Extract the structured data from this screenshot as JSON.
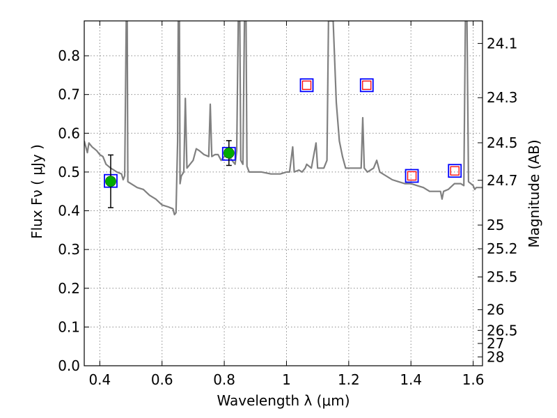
{
  "chart_data": {
    "type": "scatter",
    "xlabel": "Wavelength  λ (μm)",
    "ylabel": "Flux  Fν  ( μJy )",
    "y2label": "Magnitude (AB)",
    "xlim": [
      0.35,
      1.63
    ],
    "ylim": [
      0.0,
      0.89
    ],
    "grid": true,
    "x_ticks": [
      0.4,
      0.6,
      0.8,
      1.0,
      1.2,
      1.4,
      1.6
    ],
    "x_tick_labels": [
      "0.4",
      "0.6",
      "0.8",
      "1",
      "1.2",
      "1.4",
      "1.6"
    ],
    "y_ticks": [
      0.0,
      0.1,
      0.2,
      0.3,
      0.4,
      0.5,
      0.6,
      0.7,
      0.8
    ],
    "y_tick_labels": [
      "0.0",
      "0.1",
      "0.2",
      "0.3",
      "0.4",
      "0.5",
      "0.6",
      "0.7",
      "0.8"
    ],
    "mag_ticks": [
      "24.1",
      "24.3",
      "24.5",
      "24.7",
      "25",
      "25.2",
      "25.5",
      "26",
      "26.5",
      "27",
      "28"
    ],
    "series": [
      {
        "kind": "model_spectrum_line",
        "color": "#808080",
        "points": [
          [
            0.35,
            0.58
          ],
          [
            0.36,
            0.55
          ],
          [
            0.365,
            0.575
          ],
          [
            0.375,
            0.565
          ],
          [
            0.39,
            0.555
          ],
          [
            0.4,
            0.545
          ],
          [
            0.41,
            0.54
          ],
          [
            0.42,
            0.52
          ],
          [
            0.435,
            0.51
          ],
          [
            0.445,
            0.505
          ],
          [
            0.455,
            0.5
          ],
          [
            0.47,
            0.495
          ],
          [
            0.475,
            0.48
          ],
          [
            0.48,
            0.49
          ],
          [
            0.485,
            0.89
          ],
          [
            0.488,
            0.89
          ],
          [
            0.49,
            0.475
          ],
          [
            0.5,
            0.47
          ],
          [
            0.52,
            0.46
          ],
          [
            0.54,
            0.455
          ],
          [
            0.56,
            0.44
          ],
          [
            0.58,
            0.43
          ],
          [
            0.6,
            0.415
          ],
          [
            0.62,
            0.41
          ],
          [
            0.635,
            0.405
          ],
          [
            0.64,
            0.39
          ],
          [
            0.645,
            0.395
          ],
          [
            0.65,
            0.58
          ],
          [
            0.652,
            0.89
          ],
          [
            0.656,
            0.89
          ],
          [
            0.658,
            0.47
          ],
          [
            0.662,
            0.49
          ],
          [
            0.67,
            0.5
          ],
          [
            0.675,
            0.69
          ],
          [
            0.68,
            0.51
          ],
          [
            0.69,
            0.52
          ],
          [
            0.7,
            0.53
          ],
          [
            0.71,
            0.56
          ],
          [
            0.72,
            0.555
          ],
          [
            0.735,
            0.545
          ],
          [
            0.75,
            0.54
          ],
          [
            0.755,
            0.675
          ],
          [
            0.76,
            0.54
          ],
          [
            0.77,
            0.545
          ],
          [
            0.78,
            0.545
          ],
          [
            0.79,
            0.53
          ],
          [
            0.8,
            0.54
          ],
          [
            0.81,
            0.54
          ],
          [
            0.82,
            0.535
          ],
          [
            0.835,
            0.52
          ],
          [
            0.84,
            0.555
          ],
          [
            0.845,
            0.89
          ],
          [
            0.85,
            0.89
          ],
          [
            0.853,
            0.53
          ],
          [
            0.86,
            0.52
          ],
          [
            0.865,
            0.89
          ],
          [
            0.87,
            0.89
          ],
          [
            0.873,
            0.515
          ],
          [
            0.88,
            0.5
          ],
          [
            0.9,
            0.5
          ],
          [
            0.92,
            0.5
          ],
          [
            0.95,
            0.495
          ],
          [
            0.98,
            0.495
          ],
          [
            1.0,
            0.5
          ],
          [
            1.01,
            0.5
          ],
          [
            1.02,
            0.565
          ],
          [
            1.025,
            0.5
          ],
          [
            1.04,
            0.505
          ],
          [
            1.05,
            0.5
          ],
          [
            1.06,
            0.51
          ],
          [
            1.065,
            0.52
          ],
          [
            1.08,
            0.51
          ],
          [
            1.095,
            0.575
          ],
          [
            1.1,
            0.51
          ],
          [
            1.12,
            0.51
          ],
          [
            1.13,
            0.53
          ],
          [
            1.135,
            0.89
          ],
          [
            1.15,
            0.89
          ],
          [
            1.16,
            0.68
          ],
          [
            1.17,
            0.58
          ],
          [
            1.18,
            0.54
          ],
          [
            1.19,
            0.51
          ],
          [
            1.21,
            0.51
          ],
          [
            1.24,
            0.51
          ],
          [
            1.245,
            0.64
          ],
          [
            1.25,
            0.51
          ],
          [
            1.26,
            0.5
          ],
          [
            1.28,
            0.51
          ],
          [
            1.29,
            0.53
          ],
          [
            1.3,
            0.5
          ],
          [
            1.32,
            0.49
          ],
          [
            1.34,
            0.48
          ],
          [
            1.36,
            0.475
          ],
          [
            1.38,
            0.47
          ],
          [
            1.4,
            0.47
          ],
          [
            1.42,
            0.465
          ],
          [
            1.44,
            0.46
          ],
          [
            1.46,
            0.45
          ],
          [
            1.48,
            0.45
          ],
          [
            1.495,
            0.45
          ],
          [
            1.5,
            0.43
          ],
          [
            1.505,
            0.45
          ],
          [
            1.52,
            0.455
          ],
          [
            1.54,
            0.47
          ],
          [
            1.56,
            0.47
          ],
          [
            1.57,
            0.465
          ],
          [
            1.575,
            0.89
          ],
          [
            1.58,
            0.89
          ],
          [
            1.585,
            0.475
          ],
          [
            1.6,
            0.465
          ],
          [
            1.605,
            0.455
          ],
          [
            1.61,
            0.46
          ],
          [
            1.63,
            0.46
          ]
        ]
      },
      {
        "kind": "model_photometry",
        "marker": "open_square",
        "color": "#0000ff",
        "points": [
          [
            0.435,
            0.477
          ],
          [
            0.815,
            0.547
          ],
          [
            1.065,
            0.724
          ],
          [
            1.258,
            0.724
          ],
          [
            1.403,
            0.49
          ],
          [
            1.541,
            0.503
          ]
        ]
      },
      {
        "kind": "upper_limits",
        "marker": "open_square",
        "color": "#ff0000",
        "points": [
          [
            1.065,
            0.724
          ],
          [
            1.258,
            0.724
          ],
          [
            1.403,
            0.49
          ],
          [
            1.541,
            0.503
          ]
        ]
      },
      {
        "kind": "observed_flux",
        "marker": "filled_circle",
        "color": "#00aa00",
        "points": [
          [
            0.435,
            0.476
          ],
          [
            0.815,
            0.549
          ]
        ],
        "errors": [
          0.068,
          0.032
        ]
      }
    ]
  }
}
